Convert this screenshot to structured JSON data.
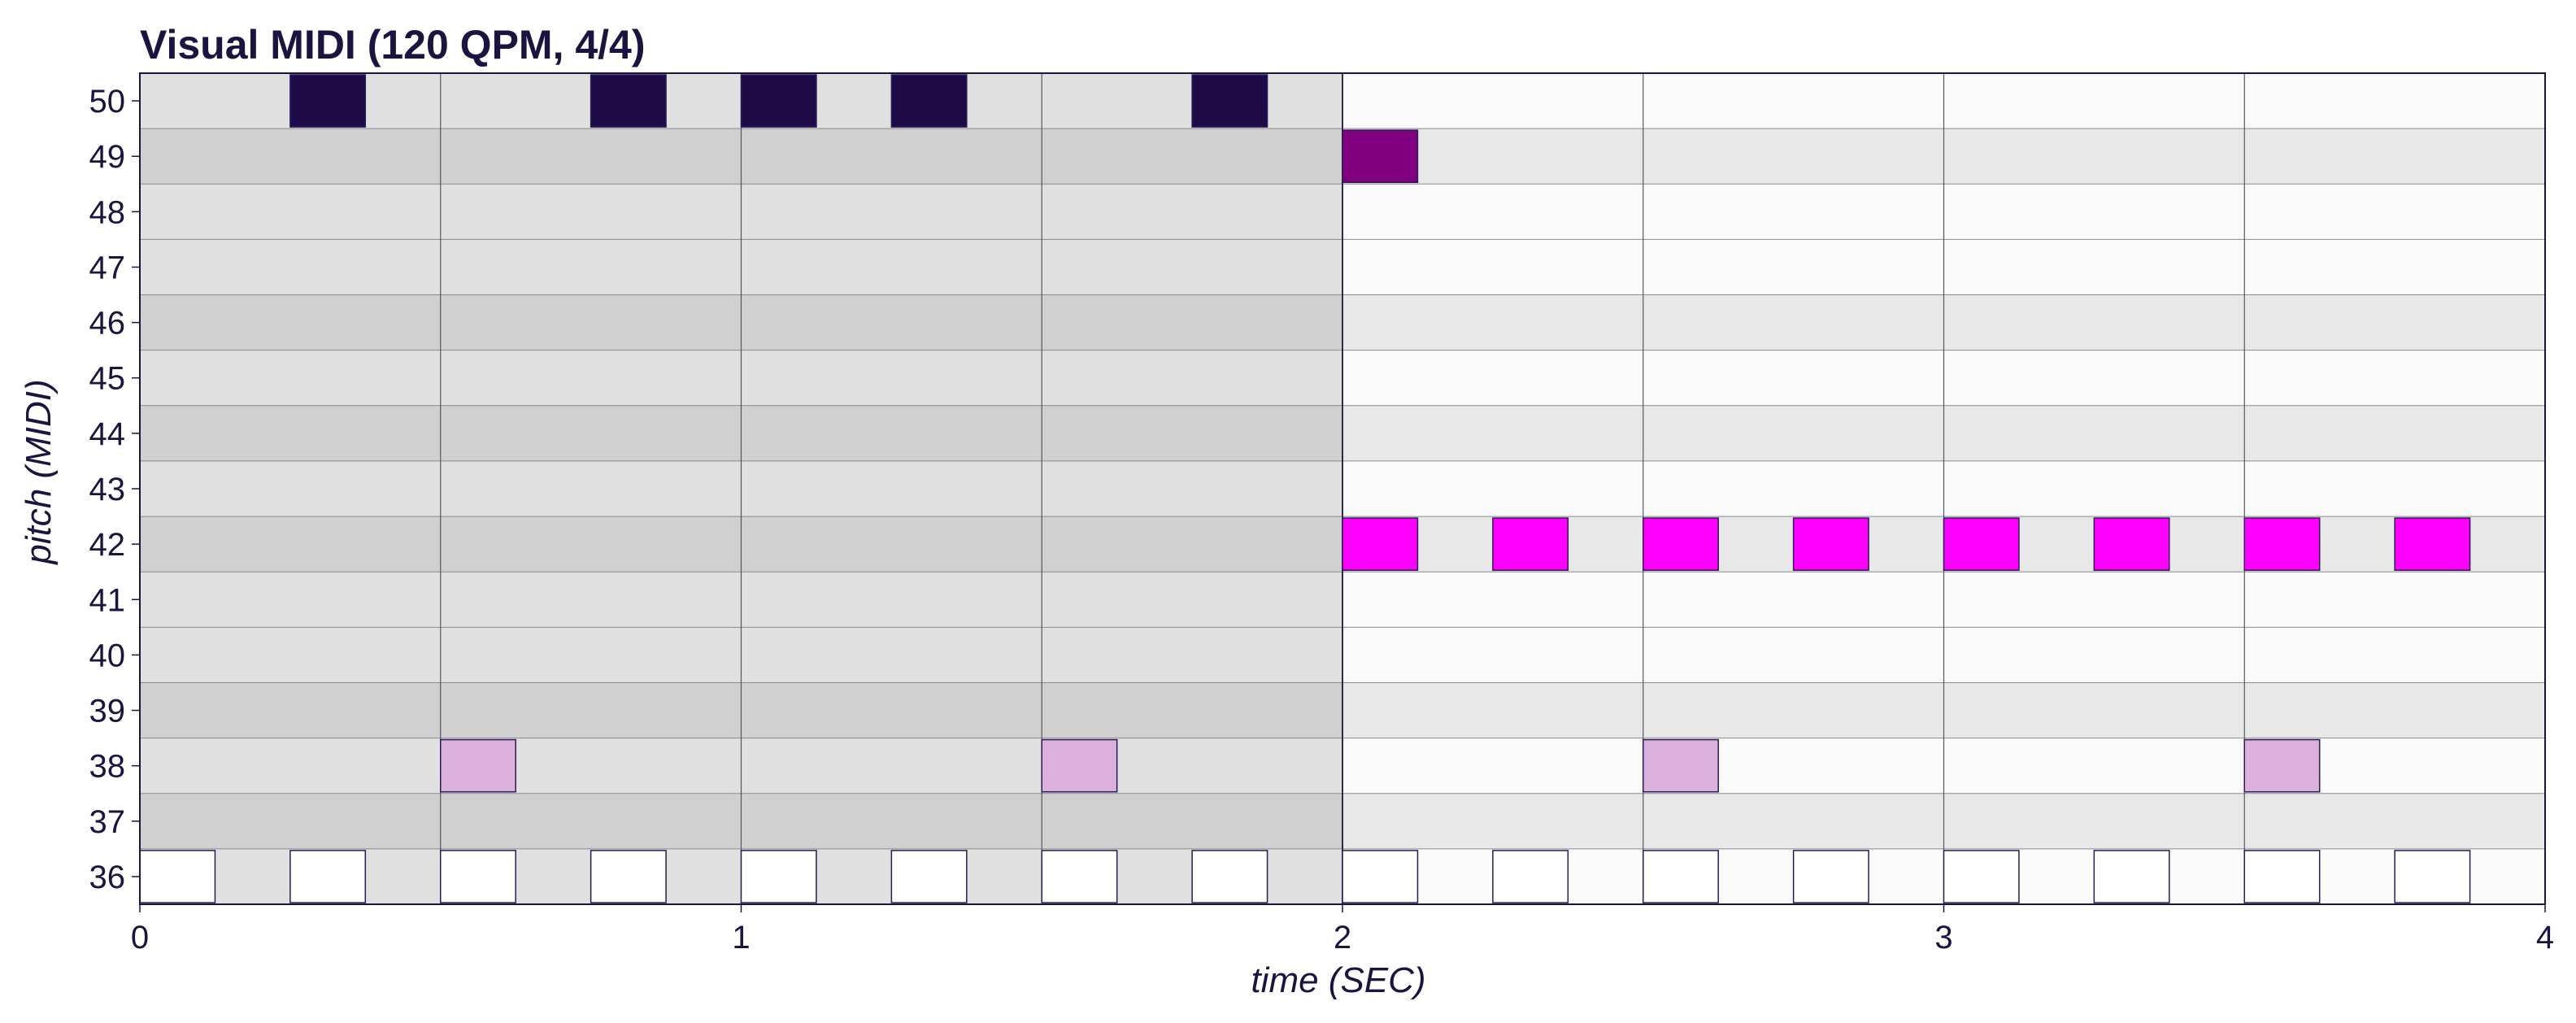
{
  "chart_data": {
    "type": "piano-roll",
    "title": "Visual MIDI (120 QPM, 4/4)",
    "xlabel": "time (SEC)",
    "ylabel": "pitch (MIDI)",
    "xlim": [
      0,
      4
    ],
    "ylim": [
      36,
      50
    ],
    "x_ticks": [
      0,
      1,
      2,
      3,
      4
    ],
    "y_ticks": [
      36,
      37,
      38,
      39,
      40,
      41,
      42,
      43,
      44,
      45,
      46,
      47,
      48,
      49,
      50
    ],
    "beat_lines": [
      0.5,
      1,
      1.5,
      2,
      2.5,
      3,
      3.5
    ],
    "shaded_region": [
      0,
      2
    ],
    "colors": {
      "white_row_region": "#e0e0e0",
      "dark_row_region": "#d0d0d0",
      "white_row": "#fafafa",
      "dark_row": "#e8e8e8",
      "pitch_50": "#1e0a46",
      "pitch_49": "#800080",
      "pitch_42": "#ff00ff",
      "pitch_38": "#dbb0dc",
      "pitch_36": "#ffffff",
      "note_border": "#2a1a55"
    },
    "notes": [
      {
        "pitch": 50,
        "start": 0.25,
        "end": 0.375,
        "color": "#1e0a46"
      },
      {
        "pitch": 50,
        "start": 0.75,
        "end": 0.875,
        "color": "#1e0a46"
      },
      {
        "pitch": 50,
        "start": 1.0,
        "end": 1.125,
        "color": "#1e0a46"
      },
      {
        "pitch": 50,
        "start": 1.25,
        "end": 1.375,
        "color": "#1e0a46"
      },
      {
        "pitch": 50,
        "start": 1.75,
        "end": 1.875,
        "color": "#1e0a46"
      },
      {
        "pitch": 49,
        "start": 2.0,
        "end": 2.125,
        "color": "#800080"
      },
      {
        "pitch": 42,
        "start": 2.0,
        "end": 2.125,
        "color": "#ff00ff"
      },
      {
        "pitch": 42,
        "start": 2.25,
        "end": 2.375,
        "color": "#ff00ff"
      },
      {
        "pitch": 42,
        "start": 2.5,
        "end": 2.625,
        "color": "#ff00ff"
      },
      {
        "pitch": 42,
        "start": 2.75,
        "end": 2.875,
        "color": "#ff00ff"
      },
      {
        "pitch": 42,
        "start": 3.0,
        "end": 3.125,
        "color": "#ff00ff"
      },
      {
        "pitch": 42,
        "start": 3.25,
        "end": 3.375,
        "color": "#ff00ff"
      },
      {
        "pitch": 42,
        "start": 3.5,
        "end": 3.625,
        "color": "#ff00ff"
      },
      {
        "pitch": 42,
        "start": 3.75,
        "end": 3.875,
        "color": "#ff00ff"
      },
      {
        "pitch": 38,
        "start": 0.5,
        "end": 0.625,
        "color": "#dbb0dc"
      },
      {
        "pitch": 38,
        "start": 1.5,
        "end": 1.625,
        "color": "#dbb0dc"
      },
      {
        "pitch": 38,
        "start": 2.5,
        "end": 2.625,
        "color": "#dbb0dc"
      },
      {
        "pitch": 38,
        "start": 3.5,
        "end": 3.625,
        "color": "#dbb0dc"
      },
      {
        "pitch": 36,
        "start": 0.0,
        "end": 0.125,
        "color": "#ffffff"
      },
      {
        "pitch": 36,
        "start": 0.25,
        "end": 0.375,
        "color": "#ffffff"
      },
      {
        "pitch": 36,
        "start": 0.5,
        "end": 0.625,
        "color": "#ffffff"
      },
      {
        "pitch": 36,
        "start": 0.75,
        "end": 0.875,
        "color": "#ffffff"
      },
      {
        "pitch": 36,
        "start": 1.0,
        "end": 1.125,
        "color": "#ffffff"
      },
      {
        "pitch": 36,
        "start": 1.25,
        "end": 1.375,
        "color": "#ffffff"
      },
      {
        "pitch": 36,
        "start": 1.5,
        "end": 1.625,
        "color": "#ffffff"
      },
      {
        "pitch": 36,
        "start": 1.75,
        "end": 1.875,
        "color": "#ffffff"
      },
      {
        "pitch": 36,
        "start": 2.0,
        "end": 2.125,
        "color": "#ffffff"
      },
      {
        "pitch": 36,
        "start": 2.25,
        "end": 2.375,
        "color": "#ffffff"
      },
      {
        "pitch": 36,
        "start": 2.5,
        "end": 2.625,
        "color": "#ffffff"
      },
      {
        "pitch": 36,
        "start": 2.75,
        "end": 2.875,
        "color": "#ffffff"
      },
      {
        "pitch": 36,
        "start": 3.0,
        "end": 3.125,
        "color": "#ffffff"
      },
      {
        "pitch": 36,
        "start": 3.25,
        "end": 3.375,
        "color": "#ffffff"
      },
      {
        "pitch": 36,
        "start": 3.5,
        "end": 3.625,
        "color": "#ffffff"
      },
      {
        "pitch": 36,
        "start": 3.75,
        "end": 3.875,
        "color": "#ffffff"
      }
    ]
  }
}
